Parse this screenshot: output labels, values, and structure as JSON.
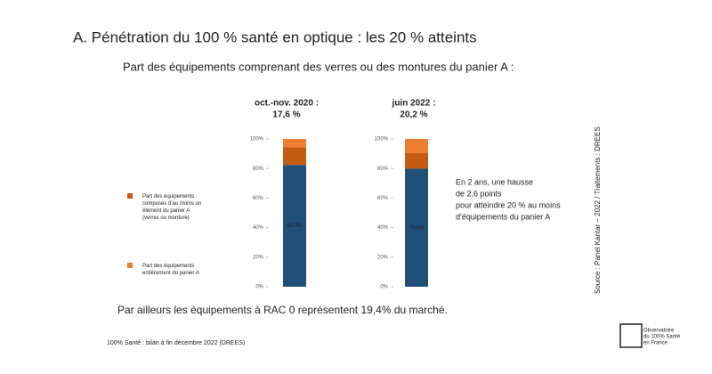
{
  "title": "A. Pénétration du 100 % santé en optique : les 20 % atteints",
  "subtitle": "Part des équipements comprenant des verres ou des montures du panier A :",
  "footnote": "Par ailleurs les équipements à RAC 0 représentent 19,4% du marché.",
  "source": "100% Santé : bilan à fin décembre 2022 (DREES)",
  "side_source": "Source : Panel Kantar – 2022 / Traitements : DREES",
  "comment": [
    "En 2 ans, une hausse",
    "de 2,6 points",
    "pour atteindre 20 % au moins",
    "d'équipements du panier A"
  ],
  "logo": [
    "Observatoire",
    "du 100% Santé",
    "en France"
  ],
  "chart_data": {
    "type": "stacked-bar",
    "categories": [
      "oct.-nov. 2020 :",
      "juin 2022 :"
    ],
    "category_totals": [
      "17,6 %",
      "20,2 %"
    ],
    "series": [
      {
        "color": "#1f4e79",
        "values": [
          82.4,
          79.8
        ],
        "value_labels": [
          "82,4%",
          "79,8%"
        ]
      },
      {
        "name": "Part des équipements composés d'au moins un élément du panier A (verres ou monture)",
        "color": "#c55a11",
        "values": [
          12.0,
          10.6
        ]
      },
      {
        "name": "Part des équipements entièrement du panier A",
        "color": "#ed7d31",
        "values": [
          5.6,
          9.6
        ]
      }
    ],
    "ylim": [
      0,
      100
    ],
    "yticks": [
      {
        "value": 0,
        "label": "0%"
      },
      {
        "value": 20,
        "label": "20%"
      },
      {
        "value": 40,
        "label": "40%"
      },
      {
        "value": 60,
        "label": "60%"
      },
      {
        "value": 80,
        "label": "80%"
      },
      {
        "value": 100,
        "label": "100%"
      }
    ]
  }
}
